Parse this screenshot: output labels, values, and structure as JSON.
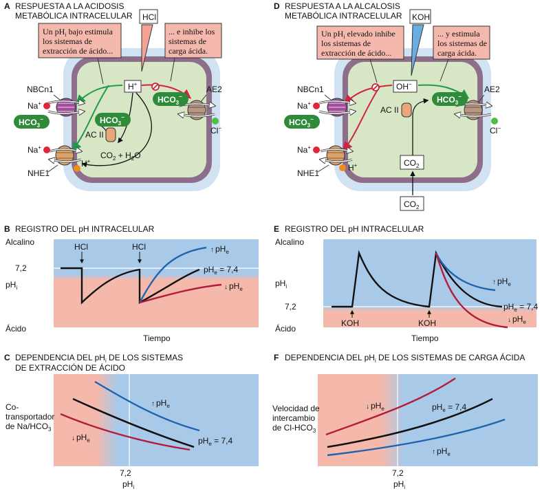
{
  "panelA": {
    "letter": "A",
    "title1": "RESPUESTA A LA ACIDOSIS",
    "title2": "METABÓLICA INTRACELULAR",
    "pipette": "HCl",
    "note_left_1": "Un pH",
    "note_left_sub": "i",
    "note_left_1b": " bajo estimula",
    "note_left_2": "los sistemas de",
    "note_left_3": "extracción de ácido...",
    "note_right_1": "... e inhibe los",
    "note_right_2": "sistemas de",
    "note_right_3": "carga ácida.",
    "ion_center": "H",
    "nbcn1": "NBCn1",
    "na": "Na",
    "hco3": "HCO",
    "acii": "AC II",
    "co2_h2o": "CO",
    "h2o": " + H",
    "nhe1": "NHE1",
    "ae2": "AE2",
    "cl": "Cl",
    "h": "H"
  },
  "panelD": {
    "letter": "D",
    "title1": "RESPUESTA A LA ALCALOSIS",
    "title2": "METABÓLICA INTRACELULAR",
    "pipette": "KOH",
    "note_left_1": "Un pH",
    "note_left_sub": "i",
    "note_left_1b": " elevado inhibe",
    "note_left_2": "los sistemas de",
    "note_left_3": "extracción de ácido...",
    "note_right_1": "... y estimula",
    "note_right_2": "los sistemas de",
    "note_right_3": "carga ácida.",
    "ion_center": "OH",
    "co2": "CO"
  },
  "panelB": {
    "letter": "B",
    "title": "REGISTRO DEL pH INTRACELULAR",
    "alcalino": "Alcalino",
    "acido": "Ácido",
    "tick": "7,2",
    "ylabel": "pH",
    "xlabel": "Tiempo",
    "arrow1": "HCl",
    "arrow2": "HCl",
    "label_high": "pH",
    "label_mid": "pH",
    "label_mid_val": " = 7,4",
    "label_low": "pH"
  },
  "panelE": {
    "letter": "E",
    "title": "REGISTRO DEL pH INTRACELULAR",
    "alcalino": "Alcalino",
    "acido": "Ácido",
    "tick": "7,2",
    "ylabel": "pH",
    "xlabel": "Tiempo",
    "arrow1": "KOH",
    "arrow2": "KOH"
  },
  "panelC": {
    "letter": "C",
    "title1": "DEPENDENCIA DEL pH",
    "title1b": " DE LOS SISTEMAS",
    "title2": "DE EXTRACCIÓN DE ÁCIDO",
    "ylabel1": "Co-",
    "ylabel2": "transportador",
    "ylabel3": "de Na/HCO",
    "tick": "7,2",
    "xlabel": "pH",
    "label_mid_val": " = 7,4"
  },
  "panelF": {
    "letter": "F",
    "title1": "DEPENDENCIA DEL pH",
    "title1b": " DE LOS SISTEMAS DE CARGA ÁCIDA",
    "ylabel1": "Velocidad de",
    "ylabel2": "intercambio",
    "ylabel3": "de Cl-HCO",
    "tick": "7,2",
    "xlabel": "pH",
    "label_mid_val": " = 7,4"
  },
  "colors": {
    "acid_bg": "#f5b9ac",
    "alk_bg": "#a9c9e8",
    "blue_line": "#1f63b0",
    "red_line": "#b21c3a",
    "black_line": "#111111",
    "cell_fill": "#d7e6c5",
    "membrane": "#8c6b86",
    "green_arrow": "#1e9a4a",
    "red_arrow": "#d0243c",
    "note_fill": "#f5b8ad"
  }
}
